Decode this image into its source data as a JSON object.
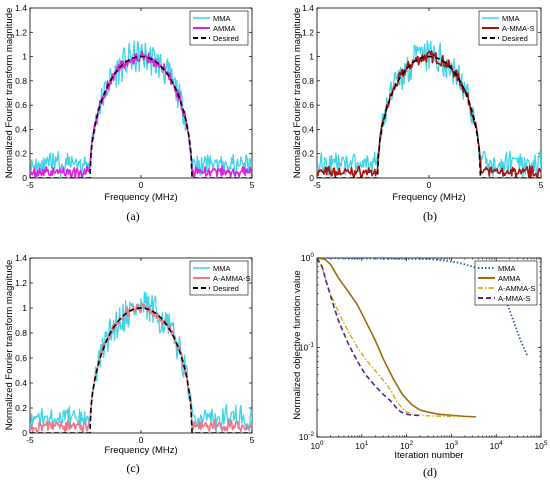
{
  "figure": {
    "panel_letters": [
      "(a)",
      "(b)",
      "(c)",
      "(d)"
    ]
  },
  "chart_data": [
    {
      "type": "line",
      "ylabel": "Normalized Fourier transform magnitude",
      "xlabel": "Frequency (MHz)",
      "xlim": [
        -5,
        5
      ],
      "ylim": [
        0,
        1.4
      ],
      "x_ticks": [
        -5,
        0,
        5
      ],
      "y_ticks": [
        0,
        0.2,
        0.4,
        0.6,
        0.8,
        1,
        1.2,
        1.4
      ],
      "grid": false,
      "legend_position": "top-right",
      "series": [
        {
          "name": "MMA",
          "color": "#3fd4e6",
          "style": "solid",
          "width": 1.3,
          "kind": "noisy",
          "noise_in": 0.14,
          "noise_out": 0.1,
          "baseline": 0.14,
          "seed": 11
        },
        {
          "name": "AMMA",
          "color": "#dd22dd",
          "style": "solid",
          "width": 1.6,
          "kind": "noisy",
          "noise_in": 0.05,
          "noise_out": 0.06,
          "baseline": 0.06,
          "seed": 5
        },
        {
          "name": "Desired",
          "color": "#000000",
          "style": "dashed",
          "width": 1.6,
          "kind": "ideal"
        }
      ]
    },
    {
      "type": "line",
      "ylabel": "Normalized Fourier transform magnitude",
      "xlabel": "Frequency (MHz)",
      "xlim": [
        -5,
        5
      ],
      "ylim": [
        0,
        1.4
      ],
      "x_ticks": [
        -5,
        0,
        5
      ],
      "y_ticks": [
        0,
        0.2,
        0.4,
        0.6,
        0.8,
        1,
        1.2,
        1.4
      ],
      "grid": false,
      "legend_position": "top-right",
      "series": [
        {
          "name": "MMA",
          "color": "#3fd4e6",
          "style": "solid",
          "width": 1.3,
          "kind": "noisy",
          "noise_in": 0.14,
          "noise_out": 0.1,
          "baseline": 0.15,
          "seed": 23
        },
        {
          "name": "A-MMA-S",
          "color": "#aa1111",
          "style": "solid",
          "width": 1.6,
          "kind": "noisy",
          "noise_in": 0.05,
          "noise_out": 0.06,
          "baseline": 0.06,
          "seed": 7
        },
        {
          "name": "Desired",
          "color": "#000000",
          "style": "dashed",
          "width": 1.6,
          "kind": "ideal"
        }
      ]
    },
    {
      "type": "line",
      "ylabel": "Normalized Fourier transform magnitude",
      "xlabel": "Frequency (MHz)",
      "xlim": [
        -5,
        5
      ],
      "ylim": [
        0,
        1.4
      ],
      "x_ticks": [
        -5,
        0,
        5
      ],
      "y_ticks": [
        0,
        0.2,
        0.4,
        0.6,
        0.8,
        1,
        1.2,
        1.4
      ],
      "grid": false,
      "legend_position": "top-right",
      "series": [
        {
          "name": "MMA",
          "color": "#3fd4e6",
          "style": "solid",
          "width": 1.3,
          "kind": "noisy",
          "noise_in": 0.14,
          "noise_out": 0.1,
          "baseline": 0.15,
          "seed": 31
        },
        {
          "name": "A-AMMA-S",
          "color": "#ee7788",
          "style": "solid",
          "width": 1.6,
          "kind": "noisy",
          "noise_in": 0.04,
          "noise_out": 0.05,
          "baseline": 0.07,
          "seed": 3
        },
        {
          "name": "Desired",
          "color": "#000000",
          "style": "dashed",
          "width": 1.6,
          "kind": "ideal"
        }
      ]
    },
    {
      "type": "line",
      "xscale": "log",
      "yscale": "log",
      "ylabel": "Normalized objective function value",
      "xlabel": "Iteration number",
      "xlim": [
        1,
        100000
      ],
      "ylim": [
        0.01,
        1
      ],
      "x_ticks": [
        1,
        10,
        100,
        1000,
        10000,
        100000
      ],
      "x_tick_labels": [
        "10^0",
        "10^1",
        "10^2",
        "10^3",
        "10^4",
        "10^5"
      ],
      "y_ticks": [
        0.01,
        0.1,
        1
      ],
      "y_tick_labels": [
        "10^-2",
        "10^-1",
        "10^0"
      ],
      "grid": false,
      "legend_position": "top-right",
      "series": [
        {
          "name": "MMA",
          "color": "#2a5db0",
          "style": "dotted",
          "width": 1.8,
          "x": [
            1,
            10,
            100,
            300,
            700,
            1500,
            3000,
            5000,
            8000,
            12000,
            18000,
            25000,
            35000,
            50000
          ],
          "y": [
            1.0,
            0.99,
            0.98,
            0.97,
            0.94,
            0.88,
            0.8,
            0.72,
            0.6,
            0.45,
            0.3,
            0.19,
            0.12,
            0.08
          ]
        },
        {
          "name": "AMMA",
          "color": "#9c6a10",
          "style": "solid",
          "width": 1.6,
          "x": [
            1,
            1.5,
            2,
            3,
            5,
            8,
            12,
            20,
            30,
            50,
            80,
            130,
            200,
            300,
            500,
            1000,
            2000,
            3500
          ],
          "y": [
            1.0,
            0.97,
            0.85,
            0.6,
            0.42,
            0.3,
            0.2,
            0.12,
            0.075,
            0.045,
            0.03,
            0.023,
            0.02,
            0.019,
            0.018,
            0.0175,
            0.017,
            0.0168
          ]
        },
        {
          "name": "A-AMMA-S",
          "color": "#d8a81a",
          "style": "dashdot",
          "width": 1.4,
          "x": [
            1,
            1.3,
            1.6,
            2,
            3,
            5,
            8,
            12,
            20,
            30,
            45,
            60,
            80,
            100,
            150,
            250,
            500,
            1000,
            1500
          ],
          "y": [
            1.0,
            0.8,
            0.55,
            0.4,
            0.25,
            0.15,
            0.1,
            0.075,
            0.055,
            0.043,
            0.033,
            0.025,
            0.021,
            0.019,
            0.0178,
            0.0173,
            0.0171,
            0.017,
            0.0168
          ]
        },
        {
          "name": "A-MMA-S",
          "color": "#4b2790",
          "style": "dashed",
          "width": 1.6,
          "x": [
            1,
            1.3,
            1.6,
            2,
            3,
            5,
            8,
            12,
            20,
            30,
            45,
            60,
            75,
            90,
            110,
            150,
            200
          ],
          "y": [
            1.0,
            0.8,
            0.55,
            0.38,
            0.2,
            0.11,
            0.07,
            0.05,
            0.037,
            0.03,
            0.025,
            0.021,
            0.019,
            0.0183,
            0.0178,
            0.0175,
            0.0174
          ]
        }
      ]
    }
  ]
}
